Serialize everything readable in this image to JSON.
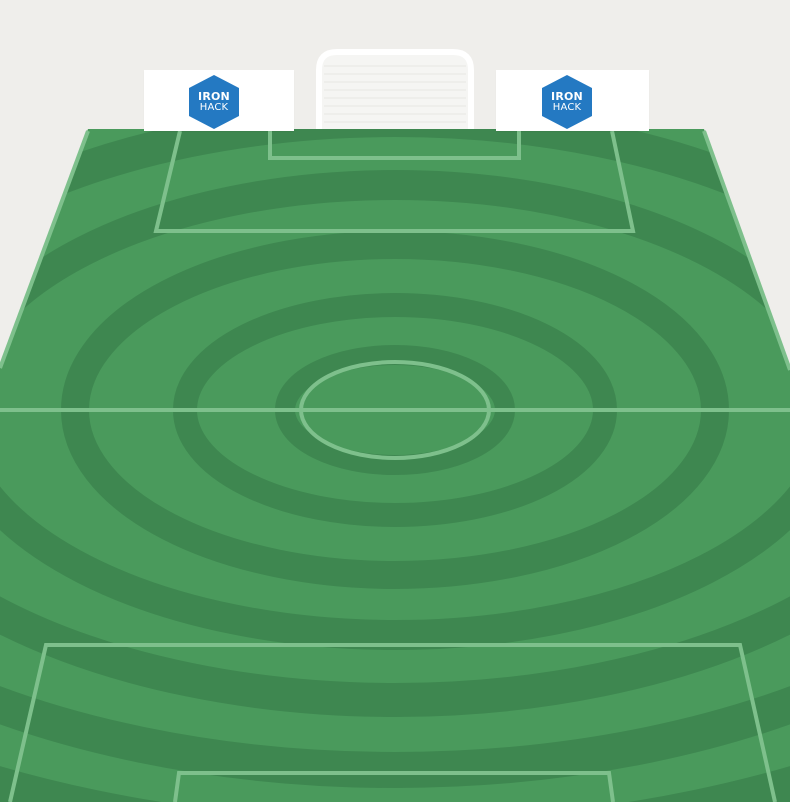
{
  "scene": {
    "type": "football-pitch",
    "view": "perspective",
    "colors": {
      "background": "#efeeeb",
      "grass_light": "#4a9a5c",
      "grass_dark": "#3e8750",
      "lines": "#7ec08c",
      "goal": "#ffffff",
      "board": "#ffffff",
      "logo": "#2479c2"
    }
  },
  "ad_boards": [
    {
      "logo_icon": "ironhack-hexagon-icon",
      "line1": "IRON",
      "line2": "HACK"
    },
    {
      "logo_icon": "ironhack-hexagon-icon",
      "line1": "IRON",
      "line2": "HACK"
    }
  ]
}
